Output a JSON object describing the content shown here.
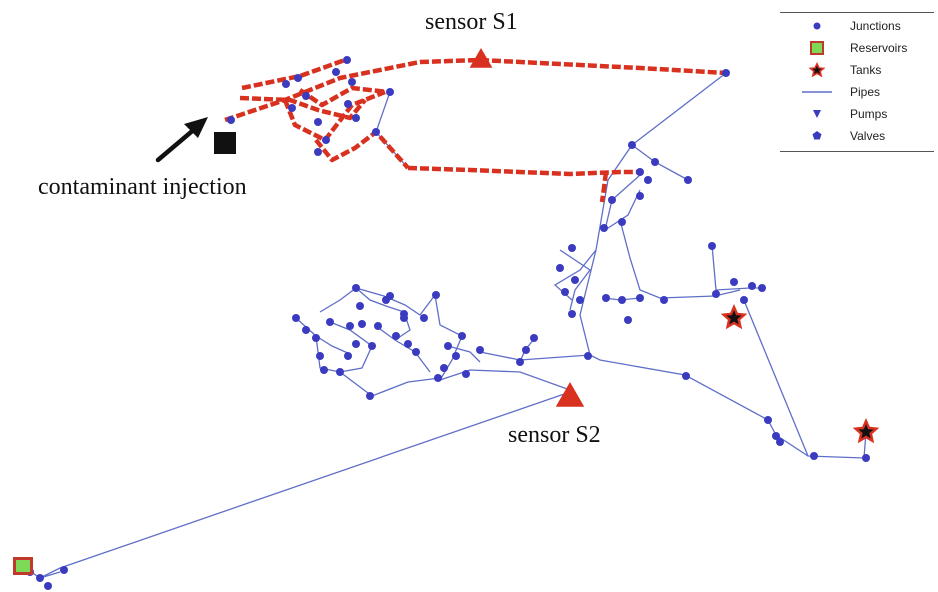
{
  "annotations": {
    "sensor_s1": "sensor S1",
    "sensor_s2": "sensor S2",
    "contaminant_injection": "contaminant injection"
  },
  "legend": {
    "junctions": "Junctions",
    "reservoirs": "Reservoirs",
    "tanks": "Tanks",
    "pipes": "Pipes",
    "pumps": "Pumps",
    "valves": "Valves"
  },
  "colors": {
    "junction": "#3b3bc0",
    "pipe": "#5f6fc8",
    "contaminated_pipe": "#d9311f",
    "sensor": "#d9311f",
    "tank_fill": "#d9311f",
    "reservoir_fill": "#7ed957",
    "reservoir_border": "#c0392b",
    "injection_marker": "#111111"
  }
}
